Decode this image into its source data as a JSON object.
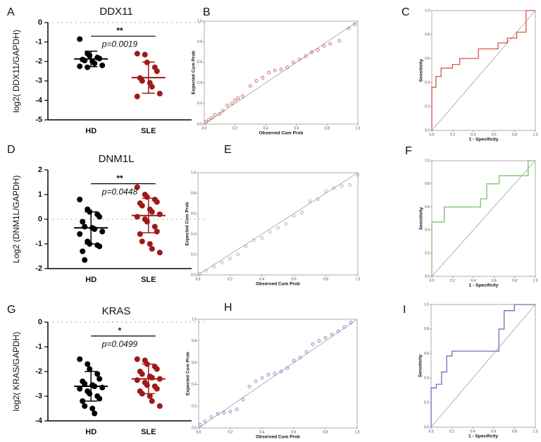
{
  "chart_data": [
    {
      "type": "dot",
      "panel_label": "A",
      "title": "DDX11",
      "y_label": "log2( DDX11/GAPDH)",
      "categories": [
        "HD",
        "SLE"
      ],
      "colors": [
        "#000000",
        "#a01818"
      ],
      "values": [
        [
          -0.85,
          -1.6,
          -1.7,
          -1.8,
          -1.85,
          -1.9,
          -1.95,
          -2.0,
          -2.1,
          -2.2,
          -2.25,
          -2.3
        ],
        [
          -1.6,
          -1.65,
          -2.05,
          -2.3,
          -2.5,
          -2.85,
          -3.0,
          -3.1,
          -3.3,
          -3.65,
          -3.8
        ]
      ],
      "means": [
        -1.87,
        -2.83
      ],
      "sds": [
        0.4,
        0.8
      ],
      "ylim": [
        -5,
        0
      ],
      "yticks": [
        0,
        -1,
        -2,
        -3,
        -4,
        -5
      ],
      "reference_line": 0,
      "significance": "**",
      "p_value_label": "p=0.0019"
    },
    {
      "type": "pp",
      "panel_label": "B",
      "x_label": "Observed Cum Prob",
      "y_label": "Expected Cum Prob",
      "color": "#c0504d",
      "x": [
        0.01,
        0.03,
        0.05,
        0.07,
        0.1,
        0.12,
        0.15,
        0.18,
        0.2,
        0.22,
        0.25,
        0.3,
        0.34,
        0.38,
        0.42,
        0.46,
        0.5,
        0.54,
        0.58,
        0.62,
        0.66,
        0.7,
        0.74,
        0.78,
        0.82,
        0.88,
        0.94,
        0.98
      ],
      "y": [
        0.02,
        0.04,
        0.06,
        0.09,
        0.1,
        0.13,
        0.18,
        0.2,
        0.23,
        0.25,
        0.27,
        0.37,
        0.42,
        0.45,
        0.5,
        0.52,
        0.53,
        0.55,
        0.6,
        0.63,
        0.66,
        0.7,
        0.72,
        0.76,
        0.78,
        0.81,
        0.93,
        0.97
      ],
      "xlim": [
        0,
        1
      ],
      "ylim": [
        0,
        1
      ],
      "xticks": [
        {
          "value": 0,
          "label": "0.0"
        },
        {
          "value": 0.2,
          "label": "0.2"
        },
        {
          "value": 0.4,
          "label": "0.4"
        },
        {
          "value": 0.6,
          "label": "0.6"
        },
        {
          "value": 0.8,
          "label": "0.8"
        },
        {
          "value": 1,
          "label": "1.0"
        }
      ],
      "yticks": [
        {
          "value": 0,
          "label": "0.0"
        },
        {
          "value": 0.2,
          "label": "0.2"
        },
        {
          "value": 0.4,
          "label": "0.4"
        },
        {
          "value": 0.6,
          "label": "0.6"
        },
        {
          "value": 0.8,
          "label": "0.8"
        },
        {
          "value": 1,
          "label": "1.0"
        }
      ]
    },
    {
      "type": "roc",
      "panel_label": "C",
      "x_label": "1 - Specificity",
      "y_label": "Sensitivity",
      "color": "#d9534f",
      "x": [
        0,
        0,
        0.04,
        0.04,
        0.09,
        0.09,
        0.2,
        0.2,
        0.27,
        0.27,
        0.45,
        0.45,
        0.64,
        0.64,
        0.73,
        0.73,
        0.82,
        0.82,
        0.91,
        0.91,
        1
      ],
      "y": [
        0,
        0.36,
        0.36,
        0.45,
        0.45,
        0.52,
        0.52,
        0.55,
        0.55,
        0.6,
        0.6,
        0.68,
        0.68,
        0.73,
        0.73,
        0.77,
        0.77,
        0.82,
        0.82,
        1,
        1
      ],
      "xlim": [
        0,
        1
      ],
      "ylim": [
        0,
        1
      ],
      "xticks": [
        {
          "value": 0,
          "label": "0.0"
        },
        {
          "value": 0.2,
          "label": "0.2"
        },
        {
          "value": 0.4,
          "label": "0.4"
        },
        {
          "value": 0.6,
          "label": "0.6"
        },
        {
          "value": 0.8,
          "label": "0.8"
        },
        {
          "value": 1,
          "label": "1.0"
        }
      ],
      "yticks": [
        {
          "value": 0,
          "label": "0.0"
        },
        {
          "value": 0.2,
          "label": "0.2"
        },
        {
          "value": 0.4,
          "label": "0.4"
        },
        {
          "value": 0.6,
          "label": "0.6"
        },
        {
          "value": 0.8,
          "label": "0.8"
        },
        {
          "value": 1,
          "label": "1.0"
        }
      ]
    },
    {
      "type": "dot",
      "panel_label": "D",
      "title": "DNM1L",
      "y_label": "Log2 (DNM1L/GAPDH)",
      "categories": [
        "HD",
        "SLE"
      ],
      "colors": [
        "#000000",
        "#a01818"
      ],
      "values": [
        [
          0.8,
          0.4,
          0.3,
          0.2,
          0.1,
          -0.1,
          -0.3,
          -0.35,
          -0.4,
          -0.5,
          -0.6,
          -0.9,
          -1.0,
          -1.05,
          -1.1,
          -1.3,
          -1.65
        ],
        [
          1.3,
          1.0,
          0.9,
          0.8,
          0.7,
          0.65,
          0.55,
          0.4,
          0.3,
          0.2,
          0.1,
          0.0,
          -0.1,
          -0.3,
          -0.5,
          -0.6,
          -0.9,
          -1.0,
          -1.2,
          -1.35
        ]
      ],
      "means": [
        -0.35,
        0.15
      ],
      "sds": [
        0.65,
        0.7
      ],
      "ylim": [
        -2,
        2
      ],
      "yticks": [
        2,
        1,
        0,
        -1,
        -2
      ],
      "reference_line": 0,
      "significance": "**",
      "p_value_label": "p=0.0448"
    },
    {
      "type": "pp",
      "panel_label": "E",
      "x_label": "Observed Cum Prob",
      "y_label": "Expected Cum Prob",
      "color": "#7cc26a",
      "x": [
        0.01,
        0.05,
        0.1,
        0.15,
        0.2,
        0.25,
        0.3,
        0.35,
        0.4,
        0.45,
        0.5,
        0.55,
        0.6,
        0.65,
        0.7,
        0.75,
        0.8,
        0.85,
        0.9,
        0.95,
        1.0
      ],
      "y": [
        0.01,
        0.04,
        0.08,
        0.12,
        0.16,
        0.2,
        0.28,
        0.34,
        0.36,
        0.42,
        0.46,
        0.5,
        0.58,
        0.61,
        0.72,
        0.74,
        0.82,
        0.85,
        0.87,
        0.88,
        0.98
      ],
      "xlim": [
        0,
        1
      ],
      "ylim": [
        0,
        1
      ],
      "xticks": [
        {
          "value": 0,
          "label": "0.0"
        },
        {
          "value": 0.2,
          "label": "0.2"
        },
        {
          "value": 0.4,
          "label": "0.4"
        },
        {
          "value": 0.6,
          "label": "0.6"
        },
        {
          "value": 0.8,
          "label": "0.8"
        },
        {
          "value": 1,
          "label": "1.0"
        }
      ],
      "yticks": [
        {
          "value": 0,
          "label": "0.0"
        },
        {
          "value": 0.2,
          "label": "0.2"
        },
        {
          "value": 0.4,
          "label": "0.4"
        },
        {
          "value": 0.6,
          "label": "0.6"
        },
        {
          "value": 0.8,
          "label": "0.8"
        },
        {
          "value": 1,
          "label": "1.0"
        }
      ]
    },
    {
      "type": "roc",
      "panel_label": "F",
      "x_label": "1 - Specificity",
      "y_label": "Sensitivity",
      "color": "#7cc26a",
      "x": [
        0,
        0,
        0.12,
        0.12,
        0.47,
        0.47,
        0.53,
        0.53,
        0.65,
        0.65,
        0.93,
        0.93,
        1
      ],
      "y": [
        0,
        0.47,
        0.47,
        0.6,
        0.6,
        0.67,
        0.67,
        0.8,
        0.8,
        0.87,
        0.87,
        1,
        1
      ],
      "xlim": [
        0,
        1
      ],
      "ylim": [
        0,
        1
      ],
      "xticks": [
        {
          "value": 0,
          "label": "0.0"
        },
        {
          "value": 0.2,
          "label": "0.2"
        },
        {
          "value": 0.4,
          "label": "0.4"
        },
        {
          "value": 0.6,
          "label": "0.6"
        },
        {
          "value": 0.8,
          "label": "0.8"
        },
        {
          "value": 1,
          "label": "1.0"
        }
      ],
      "yticks": [
        {
          "value": 0,
          "label": "0.0"
        },
        {
          "value": 0.2,
          "label": "0.2"
        },
        {
          "value": 0.4,
          "label": "0.4"
        },
        {
          "value": 0.6,
          "label": "0.6"
        },
        {
          "value": 0.8,
          "label": "0.8"
        },
        {
          "value": 1,
          "label": "1.0"
        }
      ]
    },
    {
      "type": "dot",
      "panel_label": "G",
      "title": "KRAS",
      "y_label": "log2(  KRAS/GAPDH)",
      "categories": [
        "HD",
        "SLE"
      ],
      "colors": [
        "#000000",
        "#a01818"
      ],
      "values": [
        [
          -1.5,
          -1.7,
          -1.9,
          -2.1,
          -2.3,
          -2.4,
          -2.5,
          -2.55,
          -2.6,
          -2.65,
          -2.7,
          -2.8,
          -2.9,
          -3.0,
          -3.1,
          -3.2,
          -3.4,
          -3.5,
          -3.7
        ],
        [
          -1.5,
          -1.55,
          -1.7,
          -1.8,
          -1.9,
          -2.0,
          -2.1,
          -2.2,
          -2.25,
          -2.3,
          -2.35,
          -2.45,
          -2.55,
          -2.6,
          -2.7,
          -2.8,
          -2.9,
          -3.0,
          -3.2,
          -3.4
        ]
      ],
      "means": [
        -2.6,
        -2.3
      ],
      "sds": [
        0.6,
        0.6
      ],
      "ylim": [
        -4,
        0
      ],
      "yticks": [
        0,
        -1,
        -2,
        -3,
        -4
      ],
      "reference_line": 0,
      "significance": "*",
      "p_value_label": "p=0.0499"
    },
    {
      "type": "pp",
      "panel_label": "H",
      "x_label": "Observed Cum Prob",
      "y_label": "Expected Cum Prob",
      "color": "#6f6fbf",
      "x": [
        0.01,
        0.04,
        0.08,
        0.12,
        0.16,
        0.2,
        0.24,
        0.28,
        0.32,
        0.36,
        0.4,
        0.44,
        0.48,
        0.52,
        0.56,
        0.6,
        0.64,
        0.68,
        0.72,
        0.76,
        0.8,
        0.84,
        0.88,
        0.92,
        0.96
      ],
      "y": [
        0.03,
        0.06,
        0.1,
        0.13,
        0.14,
        0.15,
        0.17,
        0.26,
        0.38,
        0.43,
        0.46,
        0.49,
        0.5,
        0.52,
        0.55,
        0.62,
        0.65,
        0.7,
        0.77,
        0.8,
        0.83,
        0.86,
        0.89,
        0.93,
        0.97
      ],
      "xlim": [
        0,
        1
      ],
      "ylim": [
        0,
        1
      ],
      "xticks": [
        {
          "value": 0,
          "label": "0.0"
        },
        {
          "value": 0.2,
          "label": "0.2"
        },
        {
          "value": 0.4,
          "label": "0.4"
        },
        {
          "value": 0.6,
          "label": "0.6"
        },
        {
          "value": 0.8,
          "label": "0.8"
        },
        {
          "value": 1,
          "label": "1.0"
        }
      ],
      "yticks": [
        {
          "value": 0,
          "label": "0.0"
        },
        {
          "value": 0.2,
          "label": "0.2"
        },
        {
          "value": 0.4,
          "label": "0.4"
        },
        {
          "value": 0.6,
          "label": "0.6"
        },
        {
          "value": 0.8,
          "label": "0.8"
        },
        {
          "value": 1,
          "label": "1.0"
        }
      ]
    },
    {
      "type": "roc",
      "panel_label": "I",
      "x_label": "1 - Specificity",
      "y_label": "Sensitivity",
      "color": "#6f6fbf",
      "x": [
        0,
        0,
        0.05,
        0.05,
        0.1,
        0.1,
        0.15,
        0.15,
        0.2,
        0.2,
        0.3,
        0.3,
        0.65,
        0.65,
        0.7,
        0.7,
        0.8,
        0.8,
        1
      ],
      "y": [
        0,
        0.32,
        0.32,
        0.35,
        0.35,
        0.45,
        0.45,
        0.58,
        0.58,
        0.62,
        0.62,
        0.62,
        0.62,
        0.8,
        0.8,
        0.95,
        0.95,
        1,
        1
      ],
      "xlim": [
        0,
        1
      ],
      "ylim": [
        0,
        1
      ],
      "xticks": [
        {
          "value": 0,
          "label": "0.0"
        },
        {
          "value": 0.2,
          "label": "0.2"
        },
        {
          "value": 0.4,
          "label": "0.4"
        },
        {
          "value": 0.6,
          "label": "0.6"
        },
        {
          "value": 0.8,
          "label": "0.8"
        },
        {
          "value": 1,
          "label": "1.0"
        }
      ],
      "yticks": [
        {
          "value": 0,
          "label": "0.0"
        },
        {
          "value": 0.2,
          "label": "0.2"
        },
        {
          "value": 0.4,
          "label": "0.4"
        },
        {
          "value": 0.6,
          "label": "0.6"
        },
        {
          "value": 0.8,
          "label": "0.8"
        },
        {
          "value": 1,
          "label": "1.0"
        }
      ]
    }
  ]
}
